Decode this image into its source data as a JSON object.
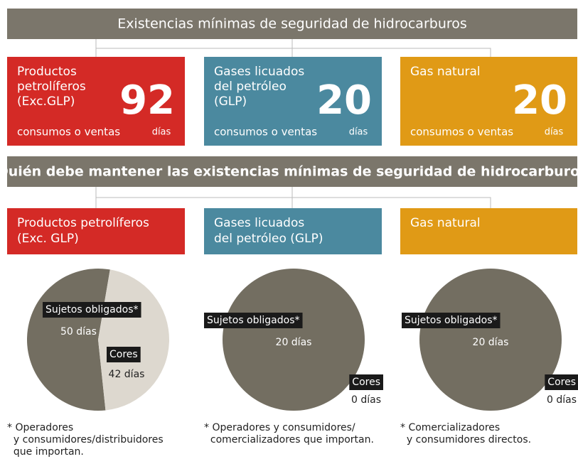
{
  "header": {
    "title": "Existencias mínimas de seguridad de hidrocarburos"
  },
  "boxes": [
    {
      "lines": [
        "Productos",
        "petrolíferos",
        "(Exc.GLP)"
      ],
      "value": 92,
      "note": "consumos o ventas",
      "unit": "días",
      "color": "#d42a26"
    },
    {
      "lines": [
        "Gases licuados",
        "del petróleo",
        "(GLP)"
      ],
      "value": 20,
      "note": "consumos o ventas",
      "unit": "días",
      "color": "#4b899f"
    },
    {
      "lines": [
        "Gas natural"
      ],
      "value": 20,
      "note": "consumos o ventas",
      "unit": "días",
      "color": "#e09a16"
    }
  ],
  "section": {
    "title": "Quién debe mantener las existencias mínimas de seguridad de hidrocarburos"
  },
  "chart_data": [
    {
      "type": "pie",
      "title": [
        "Productos petrolíferos",
        "(Exc. GLP)"
      ],
      "title_color": "#d42a26",
      "categories": [
        "Sujetos obligados*",
        "Cores"
      ],
      "values": [
        50,
        42
      ],
      "value_labels": [
        "50 días",
        "42 días"
      ],
      "colors": [
        "#736e61",
        "#ddd8cf"
      ],
      "footnote": [
        "* Operadores",
        "  y consumidores/distribuidores",
        "  que importan."
      ]
    },
    {
      "type": "pie",
      "title": [
        "Gases licuados",
        "del petróleo (GLP)"
      ],
      "title_color": "#4b899f",
      "categories": [
        "Sujetos obligados*",
        "Cores"
      ],
      "values": [
        20,
        0
      ],
      "value_labels": [
        "20 días",
        "0 días"
      ],
      "colors": [
        "#736e61",
        "#ddd8cf"
      ],
      "footnote": [
        "* Operadores y consumidores/",
        "  comercializadores que importan."
      ]
    },
    {
      "type": "pie",
      "title": [
        "Gas natural"
      ],
      "title_color": "#e09a16",
      "categories": [
        "Sujetos obligados*",
        "Cores"
      ],
      "values": [
        20,
        0
      ],
      "value_labels": [
        "20 días",
        "0 días"
      ],
      "colors": [
        "#736e61",
        "#ddd8cf"
      ],
      "footnote": [
        "* Comercializadores",
        "  y consumidores directos."
      ]
    }
  ]
}
